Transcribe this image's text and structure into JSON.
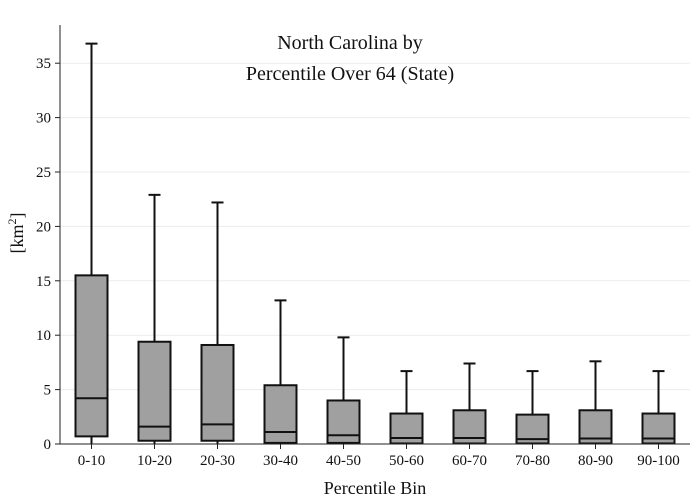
{
  "chart_data": {
    "type": "box",
    "title_lines": [
      "North Carolina  by",
      "Percentile Over 64 (State)"
    ],
    "xlabel": "Percentile Bin",
    "ylabel": "[km",
    "ylabel_sup": "2",
    "ylabel_close": "]",
    "ylim": [
      0,
      37
    ],
    "yticks": [
      0,
      5,
      10,
      15,
      20,
      25,
      30,
      35
    ],
    "grid": true,
    "box_color": "#a0a0a0",
    "categories": [
      "0-10",
      "10-20",
      "20-30",
      "30-40",
      "40-50",
      "50-60",
      "60-70",
      "70-80",
      "80-90",
      "90-100"
    ],
    "boxes": [
      {
        "min": 0.0,
        "q1": 0.7,
        "median": 4.2,
        "q3": 15.5,
        "max": 36.8
      },
      {
        "min": 0.0,
        "q1": 0.3,
        "median": 1.6,
        "q3": 9.4,
        "max": 22.9
      },
      {
        "min": 0.0,
        "q1": 0.3,
        "median": 1.8,
        "q3": 9.1,
        "max": 22.2
      },
      {
        "min": 0.0,
        "q1": 0.1,
        "median": 1.1,
        "q3": 5.4,
        "max": 13.2
      },
      {
        "min": 0.0,
        "q1": 0.1,
        "median": 0.8,
        "q3": 4.0,
        "max": 9.8
      },
      {
        "min": 0.0,
        "q1": 0.05,
        "median": 0.55,
        "q3": 2.8,
        "max": 6.7
      },
      {
        "min": 0.0,
        "q1": 0.05,
        "median": 0.55,
        "q3": 3.1,
        "max": 7.4
      },
      {
        "min": 0.0,
        "q1": 0.05,
        "median": 0.45,
        "q3": 2.7,
        "max": 6.7
      },
      {
        "min": 0.0,
        "q1": 0.05,
        "median": 0.5,
        "q3": 3.1,
        "max": 7.6
      },
      {
        "min": 0.0,
        "q1": 0.05,
        "median": 0.5,
        "q3": 2.8,
        "max": 6.7
      }
    ]
  }
}
